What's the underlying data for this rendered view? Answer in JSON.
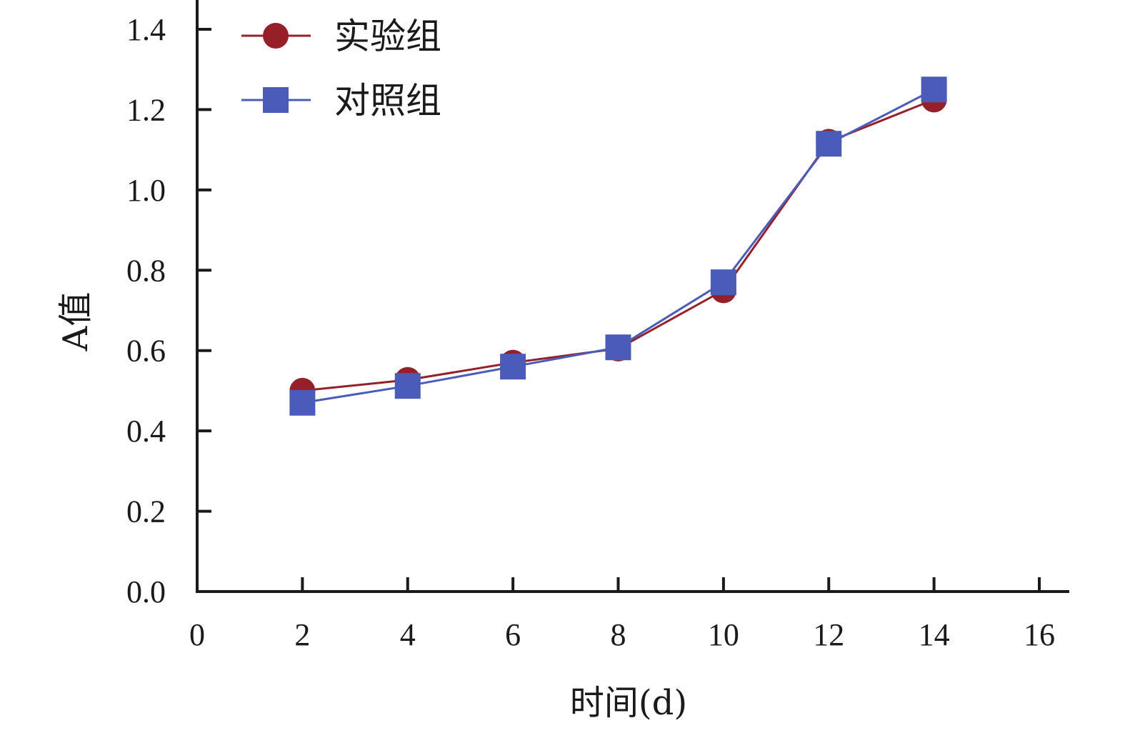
{
  "chart_data": {
    "type": "line",
    "xlabel": "时间(d)",
    "ylabel": "A值",
    "xlim": [
      0,
      16
    ],
    "ylim": [
      0.0,
      1.4
    ],
    "x_ticks": [
      "0",
      "2",
      "4",
      "6",
      "8",
      "10",
      "12",
      "14",
      "16"
    ],
    "y_ticks": [
      "0.0",
      "0.2",
      "0.4",
      "0.6",
      "0.8",
      "1.0",
      "1.2",
      "1.4"
    ],
    "grid": false,
    "legend_position": "top-left",
    "x": [
      2,
      4,
      6,
      8,
      10,
      12,
      14
    ],
    "series": [
      {
        "name": "实验组",
        "marker": "circle",
        "color": "#962029",
        "values": [
          0.5,
          0.527,
          0.57,
          0.605,
          0.75,
          1.12,
          1.225
        ]
      },
      {
        "name": "对照组",
        "marker": "square",
        "color": "#4a5bb8",
        "values": [
          0.47,
          0.512,
          0.56,
          0.608,
          0.77,
          1.115,
          1.25
        ]
      }
    ]
  }
}
